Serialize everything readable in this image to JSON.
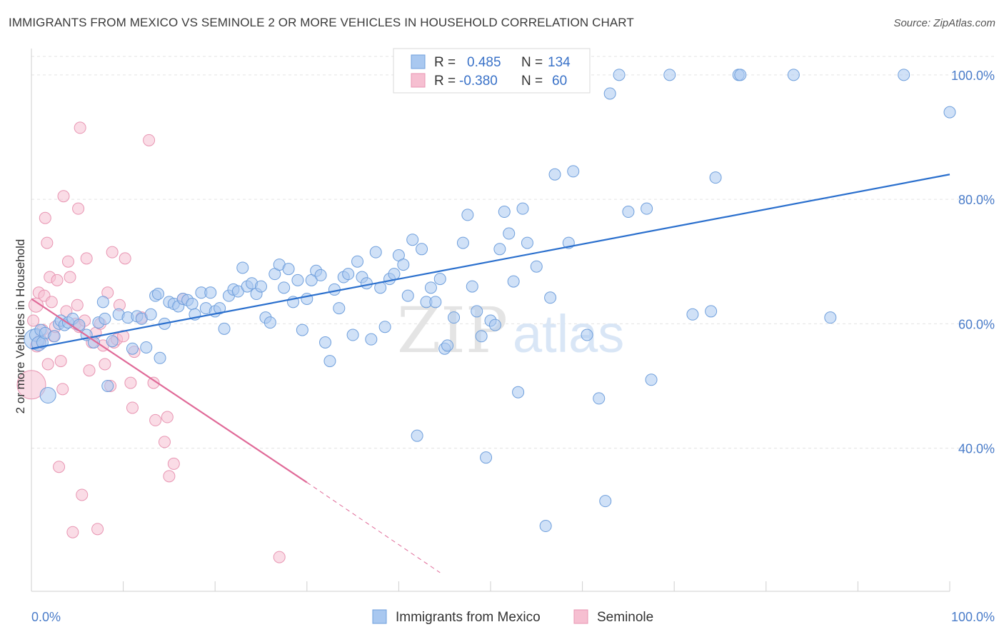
{
  "title": "IMMIGRANTS FROM MEXICO VS SEMINOLE 2 OR MORE VEHICLES IN HOUSEHOLD CORRELATION CHART",
  "source": "Source: ZipAtlas.com",
  "watermark": {
    "zip": "ZIP",
    "atlas": "atlas"
  },
  "legend": {
    "series1": {
      "r_label": "R =",
      "r_value": "0.485",
      "n_label": "N =",
      "n_value": "134"
    },
    "series2": {
      "r_label": "R =",
      "r_value": "-0.380",
      "n_label": "N =",
      "n_value": "60"
    }
  },
  "colors": {
    "blue_fill": "#a9c8f0",
    "blue_stroke": "#6f9fdc",
    "blue_line": "#2a6fcd",
    "pink_fill": "#f6bfd1",
    "pink_stroke": "#e895b2",
    "pink_line": "#e06a98",
    "grid": "#e3e3e3",
    "axis_text": "#4a7cc9"
  },
  "chart_data": {
    "type": "scatter",
    "xlabel": "",
    "ylabel": "2 or more Vehicles in Household",
    "xlim": [
      0,
      100
    ],
    "ylim": [
      17,
      104
    ],
    "x_tick_labels": [
      "0.0%",
      "100.0%"
    ],
    "y_ticks": [
      40,
      60,
      80,
      100
    ],
    "y_tick_labels": [
      "40.0%",
      "60.0%",
      "80.0%",
      "100.0%"
    ],
    "grid": true,
    "legend_position": "top-center",
    "series": [
      {
        "name": "Immigrants from Mexico",
        "color": "#6f9fdc",
        "trend": {
          "x": [
            0,
            100
          ],
          "y": [
            56.0,
            84.0
          ]
        },
        "points": [
          [
            0.3,
            57.5,
            14
          ],
          [
            0.5,
            58.2,
            9
          ],
          [
            0.8,
            56.8,
            10
          ],
          [
            1.0,
            59.0,
            8
          ],
          [
            1.2,
            57.0,
            8
          ],
          [
            1.5,
            58.5,
            8
          ],
          [
            1.8,
            48.5,
            11
          ],
          [
            2.5,
            58.0,
            8
          ],
          [
            3.0,
            60.0,
            8
          ],
          [
            3.2,
            60.5,
            8
          ],
          [
            3.6,
            59.8,
            8
          ],
          [
            4.0,
            60.2,
            8
          ],
          [
            4.5,
            60.8,
            8
          ],
          [
            5.2,
            59.8,
            8
          ],
          [
            6.0,
            58.2,
            8
          ],
          [
            6.8,
            57.0,
            8
          ],
          [
            7.3,
            60.2,
            8
          ],
          [
            7.8,
            63.5,
            8
          ],
          [
            8.0,
            60.8,
            8
          ],
          [
            8.3,
            50.0,
            8
          ],
          [
            8.8,
            57.2,
            8
          ],
          [
            9.5,
            61.5,
            8
          ],
          [
            10.5,
            61.0,
            8
          ],
          [
            11.0,
            56.0,
            8
          ],
          [
            11.5,
            61.2,
            8
          ],
          [
            12.0,
            60.8,
            8
          ],
          [
            12.5,
            56.2,
            8
          ],
          [
            13.0,
            61.5,
            8
          ],
          [
            13.5,
            64.5,
            8
          ],
          [
            13.8,
            64.8,
            8
          ],
          [
            14.0,
            54.5,
            8
          ],
          [
            14.5,
            60.0,
            8
          ],
          [
            15.0,
            63.5,
            8
          ],
          [
            15.5,
            63.2,
            8
          ],
          [
            16.0,
            62.8,
            8
          ],
          [
            16.5,
            64.0,
            8
          ],
          [
            17.0,
            63.8,
            8
          ],
          [
            17.5,
            63.2,
            8
          ],
          [
            17.8,
            61.5,
            8
          ],
          [
            18.5,
            65.0,
            8
          ],
          [
            19.0,
            62.5,
            8
          ],
          [
            19.5,
            65.0,
            8
          ],
          [
            20.0,
            62.0,
            8
          ],
          [
            20.5,
            62.5,
            8
          ],
          [
            21.0,
            59.2,
            8
          ],
          [
            21.5,
            64.5,
            8
          ],
          [
            22.0,
            65.5,
            8
          ],
          [
            22.5,
            65.2,
            8
          ],
          [
            23.0,
            69.0,
            8
          ],
          [
            23.5,
            66.0,
            8
          ],
          [
            24.0,
            66.5,
            8
          ],
          [
            24.5,
            64.8,
            8
          ],
          [
            25.0,
            66.0,
            8
          ],
          [
            25.5,
            61.0,
            8
          ],
          [
            26.0,
            60.2,
            8
          ],
          [
            26.5,
            68.0,
            8
          ],
          [
            27.0,
            69.5,
            8
          ],
          [
            27.5,
            65.8,
            8
          ],
          [
            28.0,
            68.8,
            8
          ],
          [
            28.5,
            63.5,
            8
          ],
          [
            29.0,
            67.0,
            8
          ],
          [
            29.5,
            59.0,
            8
          ],
          [
            30.0,
            64.0,
            8
          ],
          [
            30.5,
            67.0,
            8
          ],
          [
            31.0,
            68.5,
            8
          ],
          [
            31.5,
            67.8,
            8
          ],
          [
            32.0,
            57.0,
            8
          ],
          [
            32.5,
            54.0,
            8
          ],
          [
            33.0,
            65.5,
            8
          ],
          [
            33.5,
            62.5,
            8
          ],
          [
            34.0,
            67.5,
            8
          ],
          [
            34.5,
            68.0,
            8
          ],
          [
            35.0,
            58.2,
            8
          ],
          [
            35.5,
            70.0,
            8
          ],
          [
            36.0,
            67.5,
            8
          ],
          [
            36.5,
            66.5,
            8
          ],
          [
            37.0,
            57.5,
            8
          ],
          [
            37.5,
            71.5,
            8
          ],
          [
            38.0,
            65.8,
            8
          ],
          [
            38.5,
            59.5,
            8
          ],
          [
            39.0,
            67.2,
            8
          ],
          [
            39.5,
            68.0,
            8
          ],
          [
            40.0,
            71.0,
            8
          ],
          [
            40.5,
            69.5,
            8
          ],
          [
            41.0,
            64.5,
            8
          ],
          [
            41.5,
            73.5,
            8
          ],
          [
            42.0,
            42.0,
            8
          ],
          [
            42.5,
            72.0,
            8
          ],
          [
            43.0,
            63.5,
            8
          ],
          [
            43.5,
            65.8,
            8
          ],
          [
            44.0,
            63.5,
            8
          ],
          [
            44.5,
            67.2,
            8
          ],
          [
            45.0,
            56.0,
            8
          ],
          [
            45.3,
            56.5,
            8
          ],
          [
            45.8,
            100.0,
            8
          ],
          [
            46.0,
            61.0,
            8
          ],
          [
            47.0,
            73.0,
            8
          ],
          [
            47.5,
            77.5,
            8
          ],
          [
            48.0,
            66.0,
            8
          ],
          [
            48.5,
            62.0,
            8
          ],
          [
            49.0,
            58.0,
            8
          ],
          [
            49.5,
            38.5,
            8
          ],
          [
            50.0,
            60.5,
            8
          ],
          [
            50.5,
            59.8,
            8
          ],
          [
            51.0,
            72.0,
            8
          ],
          [
            51.5,
            78.0,
            8
          ],
          [
            52.0,
            74.5,
            8
          ],
          [
            52.5,
            66.8,
            8
          ],
          [
            53.0,
            49.0,
            8
          ],
          [
            53.5,
            78.5,
            8
          ],
          [
            54.0,
            73.0,
            8
          ],
          [
            55.0,
            69.2,
            8
          ],
          [
            56.0,
            27.5,
            8
          ],
          [
            56.5,
            64.2,
            8
          ],
          [
            57.0,
            84.0,
            8
          ],
          [
            58.0,
            100.0,
            8
          ],
          [
            58.5,
            73.0,
            8
          ],
          [
            59.0,
            84.5,
            8
          ],
          [
            60.5,
            58.2,
            8
          ],
          [
            61.8,
            48.0,
            8
          ],
          [
            62.5,
            31.5,
            8
          ],
          [
            63.0,
            97.0,
            8
          ],
          [
            64.0,
            100.0,
            8
          ],
          [
            65.0,
            78.0,
            8
          ],
          [
            67.0,
            78.5,
            8
          ],
          [
            67.5,
            51.0,
            8
          ],
          [
            69.5,
            100.0,
            8
          ],
          [
            72.0,
            61.5,
            8
          ],
          [
            74.0,
            62.0,
            8
          ],
          [
            74.5,
            83.5,
            8
          ],
          [
            77.0,
            100.0,
            8
          ],
          [
            77.2,
            100.0,
            8
          ],
          [
            83.0,
            100.0,
            8
          ],
          [
            87.0,
            61.0,
            8
          ],
          [
            95.0,
            100.0,
            8
          ],
          [
            100.0,
            94.0,
            8
          ]
        ]
      },
      {
        "name": "Seminole",
        "color": "#e895b2",
        "trend": {
          "x": [
            0,
            30
          ],
          "y": [
            64.0,
            34.5
          ]
        },
        "trend_dashed": {
          "x": [
            30,
            44.5
          ],
          "y": [
            34.5,
            20.0
          ]
        },
        "points": [
          [
            0.0,
            50.2,
            20
          ],
          [
            0.2,
            60.5,
            8
          ],
          [
            0.5,
            63.0,
            10
          ],
          [
            0.6,
            56.5,
            9
          ],
          [
            0.8,
            65.0,
            8
          ],
          [
            1.0,
            57.5,
            8
          ],
          [
            1.2,
            59.0,
            8
          ],
          [
            1.4,
            64.5,
            8
          ],
          [
            1.5,
            77.0,
            8
          ],
          [
            1.7,
            73.0,
            8
          ],
          [
            1.8,
            53.5,
            8
          ],
          [
            2.0,
            67.5,
            8
          ],
          [
            2.2,
            63.5,
            8
          ],
          [
            2.4,
            58.0,
            8
          ],
          [
            2.6,
            59.5,
            8
          ],
          [
            2.8,
            67.0,
            8
          ],
          [
            3.0,
            37.0,
            8
          ],
          [
            3.2,
            54.0,
            8
          ],
          [
            3.4,
            49.5,
            8
          ],
          [
            3.5,
            80.5,
            8
          ],
          [
            3.8,
            62.0,
            8
          ],
          [
            4.0,
            70.0,
            8
          ],
          [
            4.2,
            67.5,
            8
          ],
          [
            4.5,
            26.5,
            8
          ],
          [
            4.8,
            60.0,
            8
          ],
          [
            5.0,
            63.0,
            8
          ],
          [
            5.2,
            59.5,
            8
          ],
          [
            5.3,
            91.5,
            8
          ],
          [
            5.1,
            78.5,
            8
          ],
          [
            5.5,
            32.5,
            8
          ],
          [
            5.8,
            60.5,
            8
          ],
          [
            6.0,
            70.5,
            8
          ],
          [
            6.3,
            52.5,
            8
          ],
          [
            6.6,
            57.0,
            8
          ],
          [
            7.0,
            58.5,
            8
          ],
          [
            7.2,
            27.0,
            8
          ],
          [
            7.5,
            60.0,
            8
          ],
          [
            7.8,
            56.5,
            8
          ],
          [
            8.0,
            53.5,
            8
          ],
          [
            8.3,
            65.0,
            8
          ],
          [
            8.6,
            50.0,
            8
          ],
          [
            8.8,
            71.5,
            8
          ],
          [
            9.0,
            57.0,
            8
          ],
          [
            9.3,
            57.5,
            8
          ],
          [
            9.6,
            63.0,
            8
          ],
          [
            10.0,
            58.0,
            8
          ],
          [
            10.2,
            70.5,
            8
          ],
          [
            10.8,
            50.5,
            8
          ],
          [
            11.0,
            46.5,
            8
          ],
          [
            11.2,
            55.5,
            8
          ],
          [
            12.0,
            61.0,
            8
          ],
          [
            12.8,
            89.5,
            8
          ],
          [
            13.3,
            50.5,
            8
          ],
          [
            13.5,
            44.5,
            8
          ],
          [
            14.5,
            41.0,
            8
          ],
          [
            14.8,
            45.0,
            8
          ],
          [
            15.0,
            35.5,
            8
          ],
          [
            15.5,
            37.5,
            8
          ],
          [
            16.5,
            64.0,
            8
          ],
          [
            27.0,
            22.5,
            8
          ]
        ]
      }
    ]
  },
  "bottom_legend": {
    "series1": "Immigrants from Mexico",
    "series2": "Seminole"
  }
}
